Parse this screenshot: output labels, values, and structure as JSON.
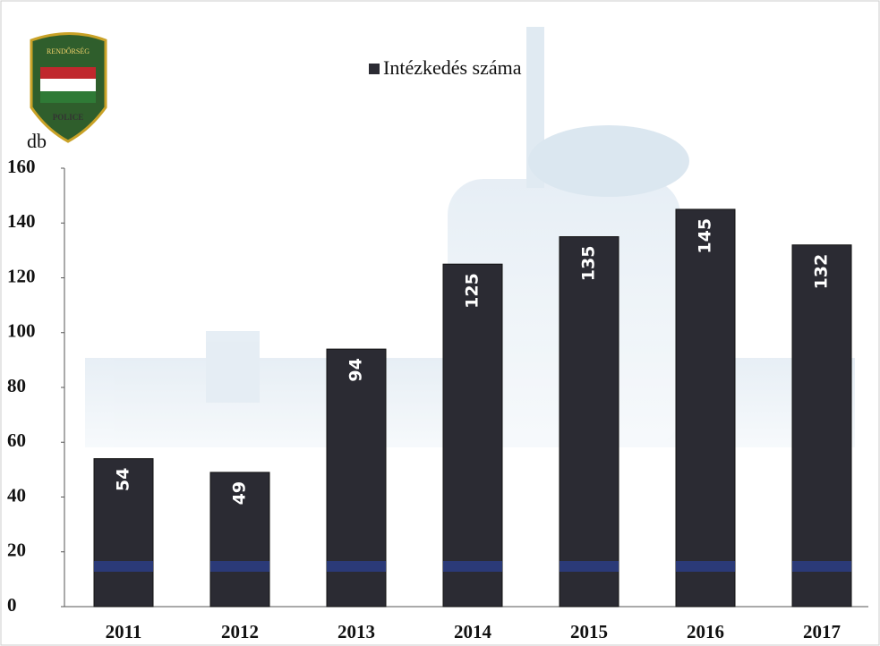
{
  "chart_data": {
    "type": "bar",
    "y_label": "db",
    "categories": [
      "2011",
      "2012",
      "2013",
      "2014",
      "2015",
      "2016",
      "2017"
    ],
    "series": [
      {
        "name": "Intézkedés száma",
        "color": "#2b2b33",
        "values": [
          54,
          49,
          94,
          125,
          135,
          145,
          132
        ]
      }
    ],
    "ylim": [
      0,
      160
    ],
    "yticks": [
      0,
      20,
      40,
      60,
      80,
      100,
      120,
      140,
      160
    ],
    "grid": false,
    "legend": "top",
    "logo_texts": [
      "RENDŐRSÉG",
      "POLICE"
    ]
  }
}
